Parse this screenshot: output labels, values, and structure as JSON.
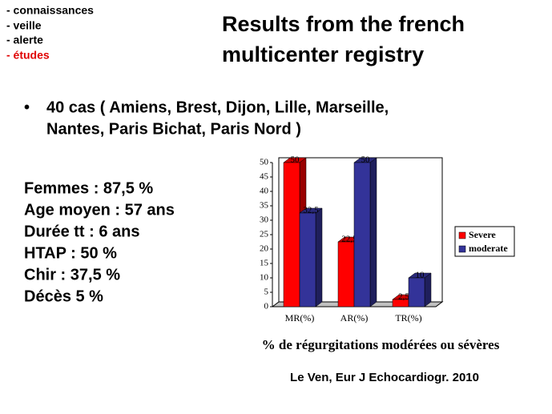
{
  "menu": [
    "- connaissances",
    "- veille",
    "- alerte",
    "- études"
  ],
  "title_lines": [
    "Results from the french",
    "multicenter registry"
  ],
  "bullet_lines": [
    "40 cas ( Amiens, Brest, Dijon, Lille, Marseille,",
    "Nantes, Paris Bichat, Paris Nord )"
  ],
  "stats": [
    "Femmes : 87,5 %",
    "Age moyen : 57 ans",
    "Durée tt : 6 ans",
    "HTAP : 50 %",
    "Chir : 37,5 %",
    "Décès 5 %"
  ],
  "citation": "Le Ven, Eur J Echocardiogr. 2010",
  "chart_data": {
    "type": "bar",
    "x_label": "% de régurgitations modérées ou sévères",
    "categories": [
      "MR(%)",
      "AR(%)",
      "TR(%)"
    ],
    "series": [
      {
        "name": "Severe",
        "color": "#ff0000",
        "values": [
          50,
          22.5,
          2.5
        ],
        "value_labels": [
          "50",
          "22,5",
          "2,5"
        ]
      },
      {
        "name": "moderate",
        "color": "#333399",
        "values": [
          32.5,
          50,
          10
        ],
        "value_labels": [
          "32,5",
          "50",
          "10"
        ]
      }
    ],
    "ylim": [
      0,
      50
    ],
    "yticks": [
      0,
      5,
      10,
      15,
      20,
      25,
      30,
      35,
      40,
      45,
      50
    ],
    "grid": false,
    "legend": "right"
  }
}
